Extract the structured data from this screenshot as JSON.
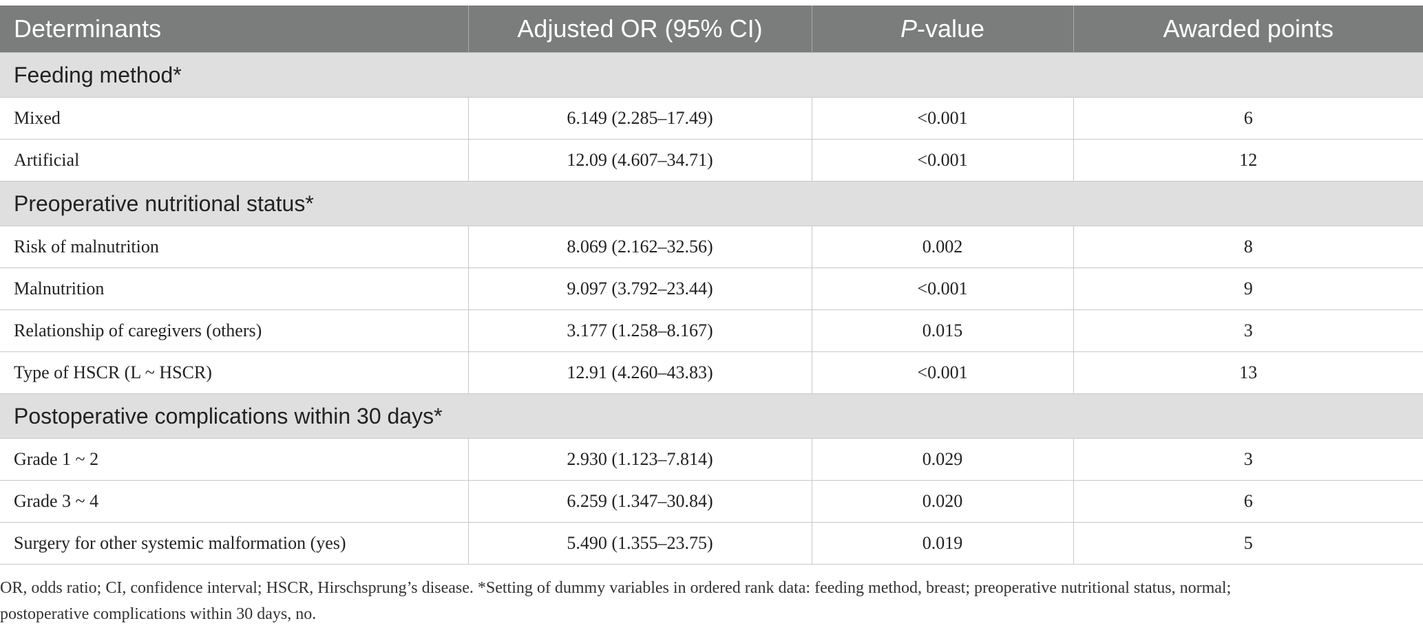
{
  "table": {
    "headers": {
      "determinants": "Determinants",
      "adjusted_or": "Adjusted OR (95% CI)",
      "p_value_italic": "P",
      "p_value_rest": "-value",
      "awarded_points": "Awarded points"
    },
    "sections": [
      {
        "title": "Feeding method*",
        "rows": [
          {
            "determinant": "Mixed",
            "or": "6.149 (2.285–17.49)",
            "p": "<0.001",
            "points": "6"
          },
          {
            "determinant": "Artificial",
            "or": "12.09 (4.607–34.71)",
            "p": "<0.001",
            "points": "12"
          }
        ]
      },
      {
        "title": "Preoperative nutritional status*",
        "rows": [
          {
            "determinant": "Risk of malnutrition",
            "or": "8.069 (2.162–32.56)",
            "p": "0.002",
            "points": "8"
          },
          {
            "determinant": "Malnutrition",
            "or": "9.097 (3.792–23.44)",
            "p": "<0.001",
            "points": "9"
          },
          {
            "determinant": "Relationship of caregivers (others)",
            "or": "3.177 (1.258–8.167)",
            "p": "0.015",
            "points": "3"
          },
          {
            "determinant": "Type of HSCR (L ~ HSCR)",
            "or": "12.91 (4.260–43.83)",
            "p": "<0.001",
            "points": "13"
          }
        ]
      },
      {
        "title": "Postoperative complications within 30 days*",
        "rows": [
          {
            "determinant": "Grade 1 ~ 2",
            "or": "2.930 (1.123–7.814)",
            "p": "0.029",
            "points": "3"
          },
          {
            "determinant": "Grade 3 ~ 4",
            "or": "6.259 (1.347–30.84)",
            "p": "0.020",
            "points": "6"
          },
          {
            "determinant": "Surgery for other systemic malformation (yes)",
            "or": "5.490 (1.355–23.75)",
            "p": "0.019",
            "points": "5"
          }
        ]
      }
    ]
  },
  "footnote": {
    "line1": "OR, odds ratio; CI, confidence interval; HSCR, Hirschsprung’s disease. *Setting of dummy variables in ordered rank data: feeding method, breast; preoperative nutritional status, normal;",
    "line2": "postoperative complications within 30 days, no."
  }
}
